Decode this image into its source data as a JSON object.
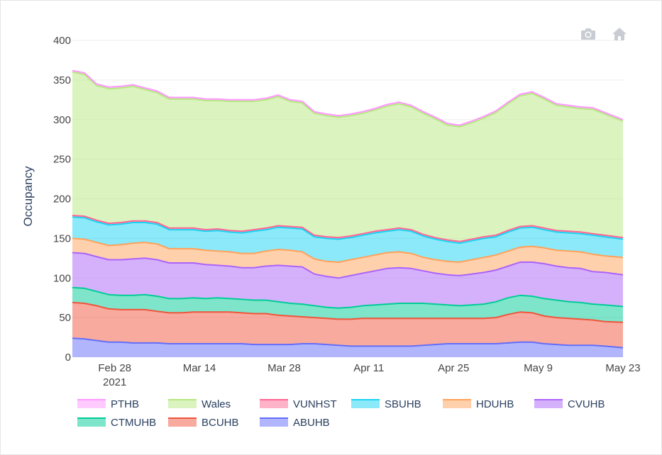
{
  "modebar": {
    "camera_icon": "camera-icon",
    "home_icon": "home-icon"
  },
  "chart_data": {
    "type": "area",
    "stacked": true,
    "ylabel": "Occupancy",
    "xlabel": "",
    "ylim": [
      0,
      400
    ],
    "yticks": [
      0,
      50,
      100,
      150,
      200,
      250,
      300,
      350,
      400
    ],
    "xlim": [
      "2021-02-21",
      "2021-05-23"
    ],
    "xticks": [
      {
        "date": "2021-02-28",
        "label": "Feb 28",
        "sublabel": "2021"
      },
      {
        "date": "2021-03-14",
        "label": "Mar 14",
        "sublabel": ""
      },
      {
        "date": "2021-03-28",
        "label": "Mar 28",
        "sublabel": ""
      },
      {
        "date": "2021-04-11",
        "label": "Apr 11",
        "sublabel": ""
      },
      {
        "date": "2021-04-25",
        "label": "Apr 25",
        "sublabel": ""
      },
      {
        "date": "2021-05-09",
        "label": "May 9",
        "sublabel": ""
      },
      {
        "date": "2021-05-23",
        "label": "May 23",
        "sublabel": ""
      }
    ],
    "grid": true,
    "legend_position": "bottom",
    "x": [
      "2021-02-21",
      "2021-02-23",
      "2021-02-25",
      "2021-02-27",
      "2021-03-01",
      "2021-03-03",
      "2021-03-05",
      "2021-03-07",
      "2021-03-09",
      "2021-03-11",
      "2021-03-13",
      "2021-03-15",
      "2021-03-17",
      "2021-03-19",
      "2021-03-21",
      "2021-03-23",
      "2021-03-25",
      "2021-03-27",
      "2021-03-29",
      "2021-03-31",
      "2021-04-02",
      "2021-04-04",
      "2021-04-06",
      "2021-04-08",
      "2021-04-10",
      "2021-04-12",
      "2021-04-14",
      "2021-04-16",
      "2021-04-18",
      "2021-04-20",
      "2021-04-22",
      "2021-04-24",
      "2021-04-26",
      "2021-04-28",
      "2021-04-30",
      "2021-05-02",
      "2021-05-04",
      "2021-05-06",
      "2021-05-08",
      "2021-05-10",
      "2021-05-12",
      "2021-05-14",
      "2021-05-16",
      "2021-05-18",
      "2021-05-20",
      "2021-05-23"
    ],
    "series": [
      {
        "name": "ABUHB",
        "color": "#636efa",
        "values": [
          24,
          23,
          21,
          19,
          19,
          18,
          18,
          18,
          17,
          17,
          17,
          17,
          17,
          17,
          17,
          16,
          16,
          16,
          16,
          17,
          17,
          16,
          15,
          14,
          14,
          14,
          14,
          14,
          14,
          15,
          16,
          17,
          17,
          17,
          17,
          17,
          18,
          19,
          19,
          17,
          16,
          15,
          15,
          15,
          14,
          12
        ]
      },
      {
        "name": "BCUHB",
        "color": "#EF553B",
        "values": [
          45,
          45,
          44,
          42,
          41,
          42,
          42,
          40,
          39,
          39,
          40,
          40,
          40,
          40,
          39,
          39,
          39,
          37,
          36,
          34,
          33,
          33,
          33,
          34,
          35,
          35,
          35,
          35,
          35,
          34,
          33,
          32,
          32,
          32,
          32,
          33,
          36,
          38,
          37,
          35,
          34,
          34,
          33,
          32,
          31,
          32
        ]
      },
      {
        "name": "CTMUHB",
        "color": "#00cc96",
        "values": [
          19,
          19,
          18,
          18,
          18,
          18,
          19,
          19,
          18,
          18,
          18,
          17,
          18,
          17,
          17,
          17,
          17,
          17,
          16,
          16,
          15,
          14,
          14,
          15,
          16,
          17,
          18,
          19,
          19,
          19,
          18,
          17,
          16,
          17,
          18,
          20,
          21,
          21,
          21,
          22,
          22,
          21,
          21,
          20,
          21,
          20
        ]
      },
      {
        "name": "CVUHB",
        "color": "#ab63fa",
        "values": [
          44,
          44,
          44,
          44,
          45,
          46,
          46,
          46,
          45,
          45,
          44,
          43,
          41,
          41,
          40,
          41,
          43,
          46,
          47,
          47,
          40,
          39,
          38,
          40,
          41,
          43,
          45,
          45,
          44,
          41,
          39,
          38,
          38,
          39,
          40,
          40,
          40,
          42,
          43,
          44,
          43,
          43,
          43,
          41,
          41,
          40
        ]
      },
      {
        "name": "HDUHB",
        "color": "#FFA15A",
        "values": [
          18,
          18,
          18,
          18,
          19,
          20,
          20,
          20,
          18,
          18,
          18,
          18,
          18,
          18,
          18,
          18,
          19,
          20,
          20,
          19,
          19,
          19,
          20,
          20,
          20,
          20,
          20,
          20,
          19,
          17,
          17,
          17,
          17,
          18,
          19,
          19,
          19,
          19,
          20,
          20,
          20,
          21,
          21,
          22,
          21,
          22
        ]
      },
      {
        "name": "SBUHB",
        "color": "#19d3f3",
        "values": [
          27,
          27,
          26,
          26,
          26,
          26,
          25,
          25,
          24,
          24,
          24,
          24,
          26,
          25,
          26,
          28,
          27,
          28,
          28,
          29,
          28,
          29,
          29,
          28,
          28,
          28,
          27,
          28,
          28,
          27,
          26,
          25,
          24,
          24,
          24,
          23,
          24,
          24,
          24,
          23,
          23,
          23,
          23,
          24,
          24,
          23
        ]
      },
      {
        "name": "VUNHST",
        "color": "#FF6692",
        "values": [
          2,
          2,
          2,
          2,
          2,
          2,
          2,
          2,
          2,
          2,
          2,
          2,
          2,
          2,
          2,
          2,
          2,
          2,
          2,
          2,
          2,
          2,
          2,
          2,
          2,
          2,
          2,
          2,
          2,
          2,
          2,
          2,
          2,
          2,
          2,
          2,
          2,
          2,
          2,
          2,
          2,
          2,
          2,
          2,
          2,
          2
        ]
      },
      {
        "name": "Wales",
        "color": "#B6E880",
        "values": [
          181,
          179,
          170,
          170,
          170,
          170,
          166,
          164,
          163,
          163,
          163,
          163,
          162,
          163,
          164,
          162,
          162,
          163,
          158,
          157,
          154,
          153,
          152,
          152,
          152,
          153,
          156,
          157,
          155,
          153,
          150,
          145,
          145,
          147,
          150,
          155,
          160,
          165,
          167,
          163,
          158,
          157,
          156,
          157,
          153,
          147
        ]
      },
      {
        "name": "PTHB",
        "color": "#FF97FF",
        "values": [
          2,
          2,
          2,
          2,
          2,
          2,
          2,
          2,
          2,
          2,
          2,
          2,
          2,
          2,
          2,
          2,
          2,
          2,
          2,
          2,
          2,
          2,
          2,
          2,
          2,
          2,
          2,
          2,
          2,
          2,
          2,
          2,
          2,
          2,
          2,
          2,
          2,
          2,
          2,
          2,
          2,
          2,
          2,
          2,
          2,
          2
        ]
      }
    ],
    "legend_order": [
      "PTHB",
      "Wales",
      "VUNHST",
      "SBUHB",
      "HDUHB",
      "CVUHB",
      "CTMUHB",
      "BCUHB",
      "ABUHB"
    ]
  }
}
